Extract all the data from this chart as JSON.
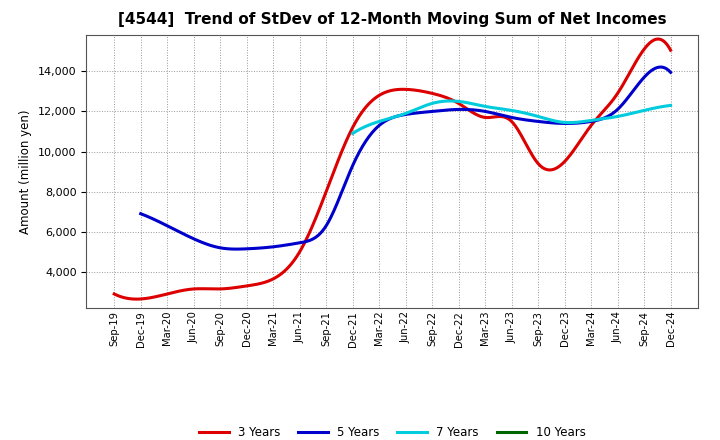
{
  "title": "[4544]  Trend of StDev of 12-Month Moving Sum of Net Incomes",
  "ylabel": "Amount (million yen)",
  "background_color": "#ffffff",
  "grid_color": "#999999",
  "ylim": [
    2200,
    15800
  ],
  "yticks": [
    4000,
    6000,
    8000,
    10000,
    12000,
    14000
  ],
  "legend_labels": [
    "3 Years",
    "5 Years",
    "7 Years",
    "10 Years"
  ],
  "legend_colors": [
    "#dd0000",
    "#0000cc",
    "#00ccdd",
    "#006600"
  ],
  "x_labels": [
    "Sep-19",
    "Dec-19",
    "Mar-20",
    "Jun-20",
    "Sep-20",
    "Dec-20",
    "Mar-21",
    "Jun-21",
    "Sep-21",
    "Dec-21",
    "Mar-22",
    "Jun-22",
    "Sep-22",
    "Dec-22",
    "Mar-23",
    "Jun-23",
    "Sep-23",
    "Dec-23",
    "Mar-24",
    "Jun-24",
    "Sep-24",
    "Dec-24"
  ],
  "series_3y": [
    2900,
    2650,
    2900,
    3150,
    3150,
    3300,
    3650,
    5000,
    8000,
    11200,
    12800,
    13100,
    12900,
    12400,
    11700,
    11500,
    9400,
    9500,
    11300,
    12900,
    15100,
    15050
  ],
  "series_5y": [
    null,
    6900,
    6300,
    5650,
    5200,
    5150,
    5250,
    5450,
    6300,
    9300,
    11300,
    11850,
    12000,
    12100,
    12000,
    11700,
    11500,
    11400,
    11500,
    12100,
    13700,
    13950
  ],
  "series_7y": [
    null,
    null,
    null,
    null,
    null,
    null,
    null,
    null,
    null,
    10900,
    11500,
    11900,
    12400,
    12500,
    12250,
    12050,
    11750,
    11450,
    11550,
    11750,
    12050,
    12300
  ],
  "series_10y": [
    null,
    null,
    null,
    null,
    null,
    null,
    null,
    null,
    null,
    null,
    null,
    null,
    null,
    null,
    null,
    null,
    null,
    null,
    null,
    null,
    null,
    null
  ],
  "line_width": 2.2
}
